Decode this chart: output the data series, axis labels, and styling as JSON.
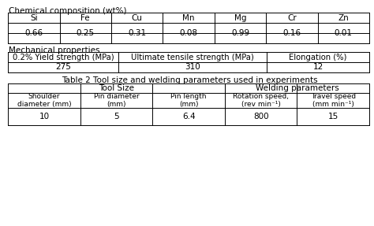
{
  "bg_color": "#f0f0f0",
  "title1": "Chemical composition (wt%)",
  "chem_headers": [
    "Si",
    "Fe",
    "Cu",
    "Mn",
    "Mg",
    "Cr",
    "Zn"
  ],
  "chem_values": [
    "0.66",
    "0.25",
    "0.31",
    "0.08",
    "0.99",
    "0.16",
    "0.01"
  ],
  "title2": "Mechanical properties",
  "mech_headers": [
    "0.2% Yield strength (MPa)",
    "Ultimate tensile strength (MPa)",
    "Elongation (%)"
  ],
  "mech_values": [
    "275",
    "310",
    "12"
  ],
  "table2_title": "Table 2 Tool size and welding parameters used in experiments",
  "table2_group_headers": [
    "Tool Size",
    "Welding parameters"
  ],
  "table2_sub_headers": [
    "Shoulder\ndiameter (mm)",
    "Pin diameter\n(mm)",
    "Pin length\n(mm)",
    "Rotation speed,\n(rev min⁻¹)",
    "Travel speed\n(mm min⁻¹)"
  ],
  "table2_values": [
    "10",
    "5",
    "6.4",
    "800",
    "15"
  ],
  "font_size": 7.5,
  "font_family": "DejaVu Sans"
}
